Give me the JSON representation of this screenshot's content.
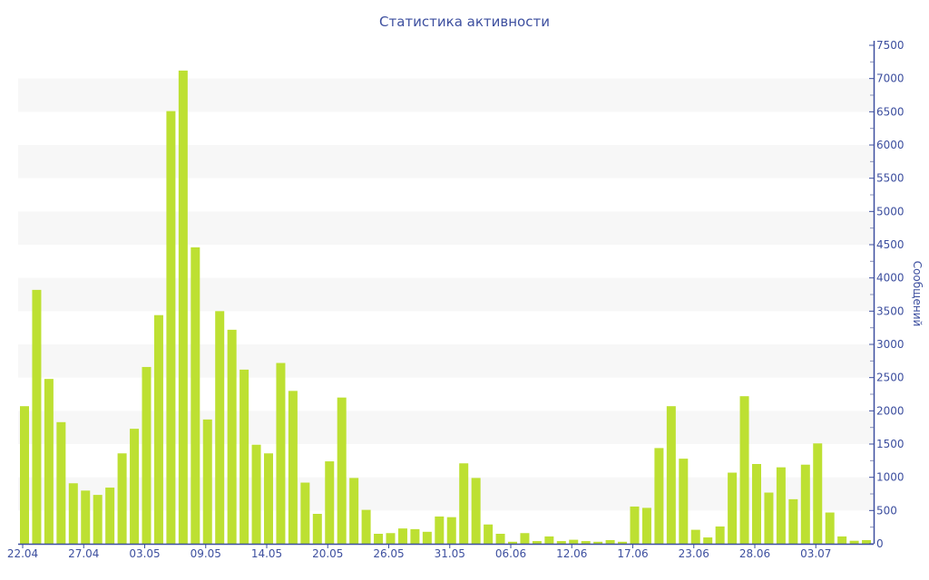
{
  "chart_data": {
    "type": "bar",
    "title": "Статистика активности",
    "ylabel": "Сообщений",
    "ylim": [
      0,
      7500
    ],
    "yticks": [
      0,
      500,
      1000,
      1500,
      2000,
      2500,
      3000,
      3500,
      4000,
      4500,
      5000,
      5500,
      6000,
      6500,
      7000,
      7500
    ],
    "y_axis_side": "right",
    "grid": "alternating horizontal bands",
    "legend": "none",
    "bar_color": "#bde032",
    "text_color": "#3d4f9f",
    "xtick_labels": [
      "22.04",
      "27.04",
      "03.05",
      "09.05",
      "14.05",
      "20.05",
      "26.05",
      "31.05",
      "06.06",
      "12.06",
      "17.06",
      "23.06",
      "28.06",
      "03.07"
    ],
    "xtick_every_n_bars": 5,
    "values": [
      2070,
      3820,
      2480,
      1830,
      910,
      800,
      735,
      845,
      1360,
      1730,
      2660,
      3440,
      6510,
      7120,
      4460,
      1870,
      3500,
      3220,
      2620,
      1490,
      1360,
      2720,
      2300,
      920,
      450,
      1240,
      2200,
      990,
      510,
      150,
      160,
      230,
      220,
      180,
      410,
      400,
      1210,
      990,
      290,
      150,
      30,
      160,
      40,
      110,
      40,
      60,
      40,
      30,
      55,
      30,
      560,
      540,
      1440,
      2070,
      1280,
      210,
      95,
      260,
      1070,
      2220,
      1200,
      770,
      1150,
      670,
      1190,
      1510,
      470,
      110,
      45,
      55
    ]
  }
}
